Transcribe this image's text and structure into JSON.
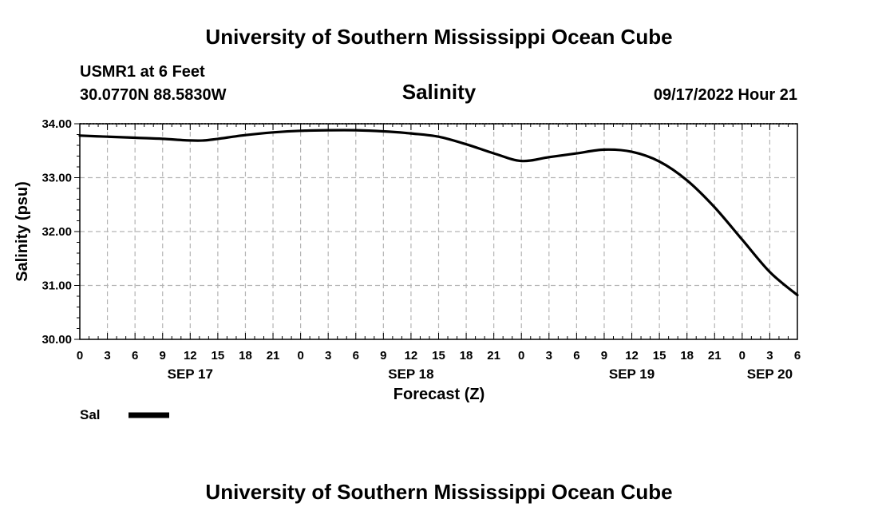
{
  "header": {
    "title": "University of Southern Mississippi Ocean Cube",
    "station": "USMR1 at 6 Feet",
    "coords": "30.0770N  88.5830W",
    "datetime": "09/17/2022 Hour 21",
    "footer_title": "University of Southern Mississippi Ocean Cube"
  },
  "legend": {
    "label": "Sal",
    "color": "#000000"
  },
  "chart_data": {
    "type": "line",
    "title": "Salinity",
    "xlabel": "Forecast (Z)",
    "ylabel": "Salinity (psu)",
    "ylim": [
      30.0,
      34.0
    ],
    "xlim": [
      0,
      78
    ],
    "y_ticks": [
      "30.00",
      "31.00",
      "32.00",
      "33.00",
      "34.00"
    ],
    "x_tick_labels": [
      "0",
      "3",
      "6",
      "9",
      "12",
      "15",
      "18",
      "21",
      "0",
      "3",
      "6",
      "9",
      "12",
      "15",
      "18",
      "21",
      "0",
      "3",
      "6",
      "9",
      "12",
      "15",
      "18",
      "21",
      "0",
      "3",
      "6"
    ],
    "day_labels": [
      {
        "label": "SEP 17",
        "hour": 12
      },
      {
        "label": "SEP 18",
        "hour": 36
      },
      {
        "label": "SEP 19",
        "hour": 60
      },
      {
        "label": "SEP 20",
        "hour": 75
      }
    ],
    "grid": true,
    "series": [
      {
        "name": "Sal",
        "color": "#000000",
        "x": [
          0,
          3,
          6,
          9,
          12,
          13.5,
          15,
          18,
          21,
          24,
          27,
          30,
          33,
          36,
          39,
          42,
          45,
          48,
          51,
          54,
          57,
          60,
          63,
          66,
          69,
          72,
          75,
          78
        ],
        "values": [
          33.78,
          33.76,
          33.74,
          33.72,
          33.69,
          33.69,
          33.72,
          33.79,
          33.84,
          33.87,
          33.88,
          33.88,
          33.86,
          33.82,
          33.76,
          33.62,
          33.45,
          33.31,
          33.38,
          33.45,
          33.52,
          33.48,
          33.3,
          32.95,
          32.45,
          31.85,
          31.25,
          30.82
        ]
      }
    ]
  }
}
